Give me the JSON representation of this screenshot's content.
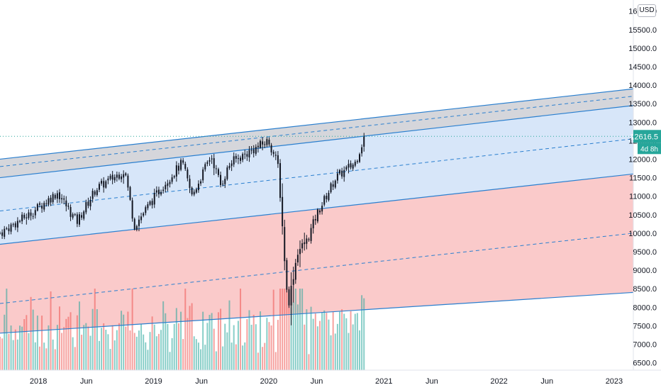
{
  "currency_label": "USD",
  "last_price_label": "12616.5",
  "countdown_label": "4d 8h",
  "colors": {
    "up": "#26a69a",
    "down": "#ef5350",
    "channel_line": "#2a7fcf",
    "zone_top": "#b2b5be",
    "zone_mid": "#bcd6f5",
    "zone_low": "#f7a7a7",
    "price_tag": "#26a69a"
  },
  "chart_data": {
    "type": "candlestick",
    "x_axis": {
      "range": [
        "2017-09",
        "2023-03"
      ],
      "tick_labels": [
        "2018",
        "Jun",
        "2019",
        "Jun",
        "2020",
        "Jun",
        "2021",
        "Jun",
        "2022",
        "Jun",
        "2023"
      ]
    },
    "y_axis": {
      "range": [
        6300,
        16300
      ],
      "tick_labels": [
        "6500.0",
        "7000.0",
        "7500.0",
        "8000.0",
        "8500.0",
        "9000.0",
        "9500.0",
        "10000.0",
        "10500.0",
        "11000.0",
        "11500.0",
        "12000.0",
        "12500.0",
        "13000.0",
        "13500.0",
        "14000.0",
        "14500.0",
        "15000.0",
        "15500.0",
        "16000.0"
      ]
    },
    "last_price": 12616.5,
    "channels": [
      {
        "zone": "top",
        "upper": [
          12000,
          13900
        ],
        "lower": [
          11500,
          13450
        ]
      },
      {
        "zone": "middle",
        "upper": [
          11500,
          13450
        ],
        "lower": [
          9700,
          11600
        ]
      },
      {
        "zone": "lower",
        "upper": [
          9700,
          11600
        ],
        "lower": [
          7300,
          8400
        ]
      }
    ],
    "dashed_midlines": [
      [
        11800,
        13700
      ],
      [
        10600,
        12550
      ],
      [
        8100,
        10000
      ]
    ],
    "price_path": [
      [
        "2017-09",
        10000
      ],
      [
        "2017-12",
        10500
      ],
      [
        "2018-03",
        11100
      ],
      [
        "2018-05",
        10300
      ],
      [
        "2018-07",
        11200
      ],
      [
        "2018-10",
        11700
      ],
      [
        "2018-11",
        10200
      ],
      [
        "2019-02",
        11300
      ],
      [
        "2019-04",
        11900
      ],
      [
        "2019-05",
        11000
      ],
      [
        "2019-07",
        12100
      ],
      [
        "2019-08",
        11300
      ],
      [
        "2019-09",
        11900
      ],
      [
        "2020-01",
        12500
      ],
      [
        "2020-02",
        11800
      ],
      [
        "2020-03",
        8000
      ],
      [
        "2020-04",
        9500
      ],
      [
        "2020-05",
        9800
      ],
      [
        "2020-06",
        10500
      ],
      [
        "2020-08",
        11500
      ],
      [
        "2020-10",
        11900
      ],
      [
        "2020-11",
        12616.5
      ]
    ]
  }
}
